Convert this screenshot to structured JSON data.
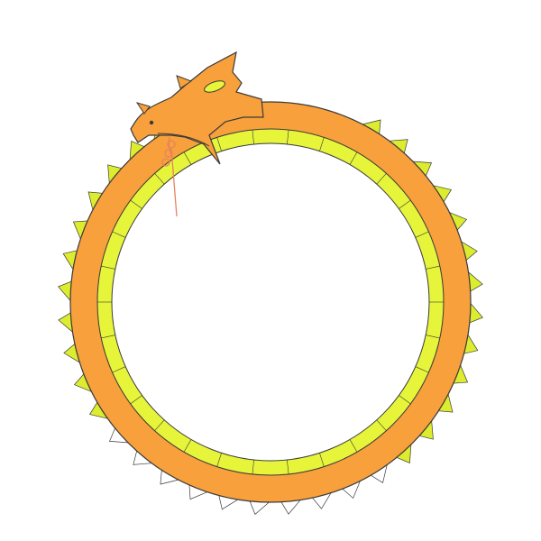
{
  "image": {
    "subject": "ouroboros-dragon",
    "colors": {
      "background": "#ffffff",
      "body": "#f7a03c",
      "belly": "#e6f53a",
      "spines": "#dcec2e",
      "tail_spines": "#ffffff",
      "outline": "#3a3a3a",
      "tongue": "#e8825c"
    }
  }
}
